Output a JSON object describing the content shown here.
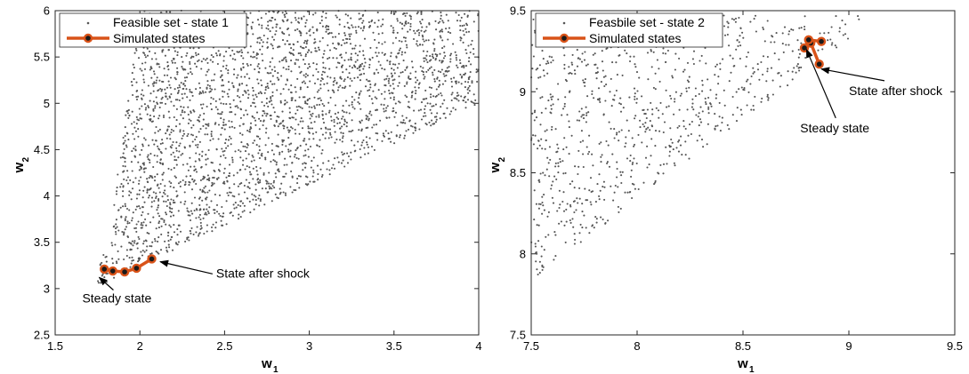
{
  "chart_data": [
    {
      "type": "scatter",
      "xlabel": "w",
      "xlabel_sub": "1",
      "ylabel": "w",
      "ylabel_sub": "2",
      "xlim": [
        1.5,
        4
      ],
      "ylim": [
        2.5,
        6
      ],
      "xticks": [
        1.5,
        2,
        2.5,
        3,
        3.5,
        4
      ],
      "xtick_labels": [
        "1.5",
        "2",
        "2.5",
        "3",
        "3.5",
        "4"
      ],
      "yticks": [
        2.5,
        3,
        3.5,
        4,
        4.5,
        5,
        5.5,
        6
      ],
      "ytick_labels": [
        "2.5",
        "3",
        "3.5",
        "4",
        "4.5",
        "5",
        "5.5",
        "6"
      ],
      "grid": false,
      "legend_position": "top-left",
      "series": [
        {
          "name": "Feasible set - state 1",
          "kind": "points",
          "color": "#555555",
          "region": {
            "apex": [
              1.78,
              3.05
            ],
            "top": 6.0,
            "left_edge_at_top": 2.0,
            "right_edge_slope_y_per_x": 0.88,
            "count": 2800
          }
        },
        {
          "name": "Simulated states",
          "kind": "line-markers",
          "color": "#d95319",
          "x": [
            2.07,
            1.98,
            1.91,
            1.84,
            1.79
          ],
          "y": [
            3.32,
            3.22,
            3.18,
            3.19,
            3.21
          ]
        }
      ],
      "annotations": [
        {
          "text": "Steady state",
          "point": [
            1.76,
            3.12
          ],
          "label_at": [
            1.66,
            2.85
          ]
        },
        {
          "text": "State after shock",
          "point": [
            2.12,
            3.29
          ],
          "label_at": [
            2.45,
            3.12
          ]
        }
      ]
    },
    {
      "type": "scatter",
      "xlabel": "w",
      "xlabel_sub": "1",
      "ylabel": "w",
      "ylabel_sub": "2",
      "xlim": [
        7.5,
        9.5
      ],
      "ylim": [
        7.5,
        9.5
      ],
      "xticks": [
        7.5,
        8,
        8.5,
        9,
        9.5
      ],
      "xtick_labels": [
        "7.5",
        "8",
        "8.5",
        "9",
        "9.5"
      ],
      "yticks": [
        7.5,
        8,
        8.5,
        9,
        9.5
      ],
      "ytick_labels": [
        "7.5",
        "8",
        "8.5",
        "9",
        "9.5"
      ],
      "grid": false,
      "legend_position": "top-left",
      "series": [
        {
          "name": "Feasbile set - state 2",
          "kind": "points",
          "color": "#555555",
          "region": {
            "apex": [
              7.5,
              7.84
            ],
            "top": 9.47,
            "left_edge_at_top": 7.5,
            "right_edge_top_x": 9.15,
            "count": 900
          }
        },
        {
          "name": "Simulated states",
          "kind": "line-markers",
          "color": "#d95319",
          "x": [
            8.86,
            8.82,
            8.79,
            8.81,
            8.87
          ],
          "y": [
            9.17,
            9.3,
            9.27,
            9.32,
            9.31
          ]
        }
      ],
      "annotations": [
        {
          "text": "Steady state",
          "point": [
            8.8,
            9.26
          ],
          "label_at": [
            8.77,
            8.75
          ]
        },
        {
          "text": "State after shock",
          "point": [
            8.87,
            9.14
          ],
          "label_at": [
            9.0,
            8.98
          ]
        }
      ]
    }
  ]
}
